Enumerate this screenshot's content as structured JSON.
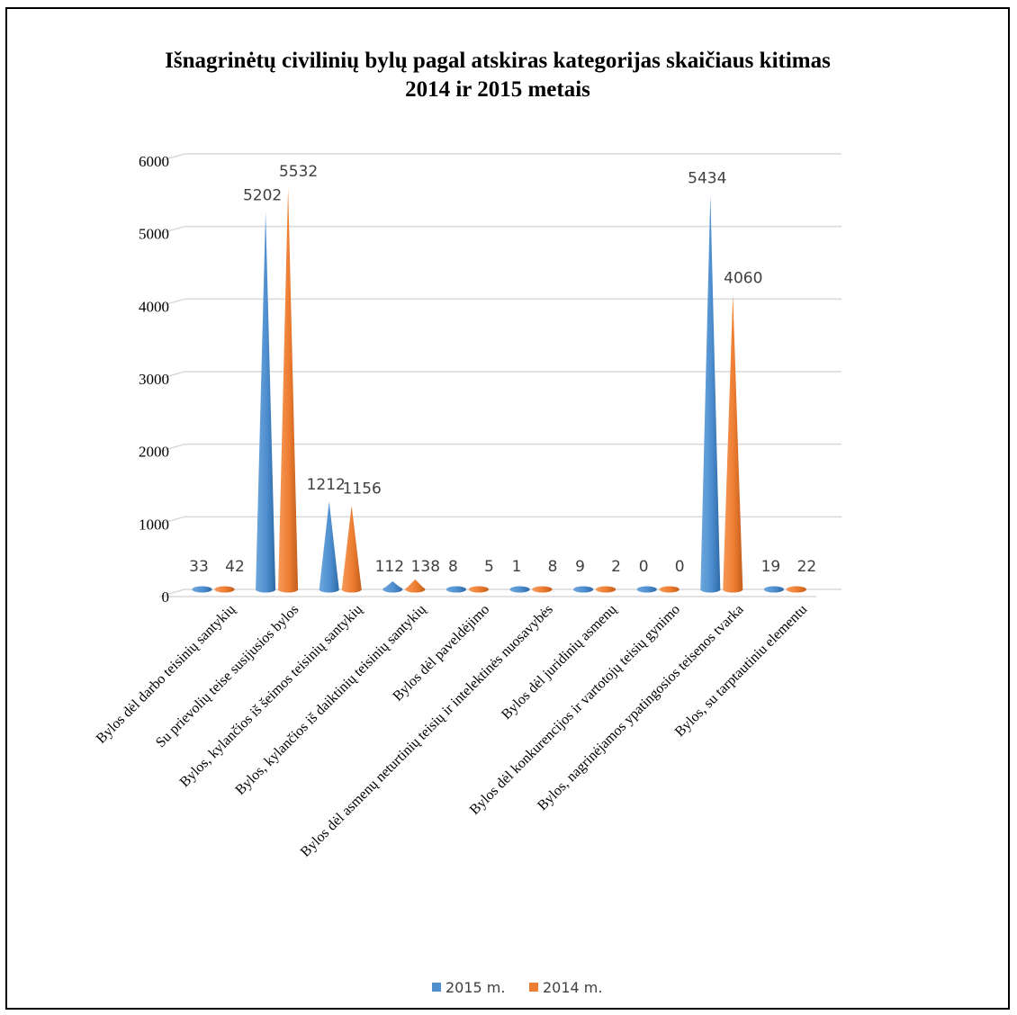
{
  "chart_data": {
    "type": "bar",
    "title": "Išnagrinėtų civilinių bylų pagal atskiras kategorijas  skaičiaus kitimas",
    "subtitle": "2014 ir 2015 metais",
    "xlabel": "",
    "ylabel": "",
    "ylim": [
      0,
      6000
    ],
    "yticks": [
      0,
      1000,
      2000,
      3000,
      4000,
      5000,
      6000
    ],
    "grid": true,
    "legend_position": "bottom",
    "categories": [
      "Bylos dėl darbo teisinių santykių",
      "Su prievolių teise susijusios bylos",
      "Bylos, kylančios iš šeimos teisinių santykių",
      "Bylos, kylančios iš daiktinių teisinių santykių",
      "Bylos dėl paveldėjimo",
      "Bylos dėl asmenų neturtinių teisių ir intelektinės nuosavybės",
      "Bylos dėl juridinių asmenų",
      "Bylos dėl konkurencijos ir vartotojų teisių gynimo",
      "Bylos, nagrinėjamos ypatingosios teisenos tvarka",
      "Bylos, su tarptautiniu elementu"
    ],
    "series": [
      {
        "name": "2015 m.",
        "color": "#4f8fcf",
        "values": [
          33,
          5202,
          1212,
          112,
          8,
          1,
          9,
          0,
          5434,
          19
        ]
      },
      {
        "name": "2014 m.",
        "color": "#ed7d31",
        "values": [
          42,
          5532,
          1156,
          138,
          5,
          8,
          2,
          0,
          4060,
          22
        ]
      }
    ]
  }
}
